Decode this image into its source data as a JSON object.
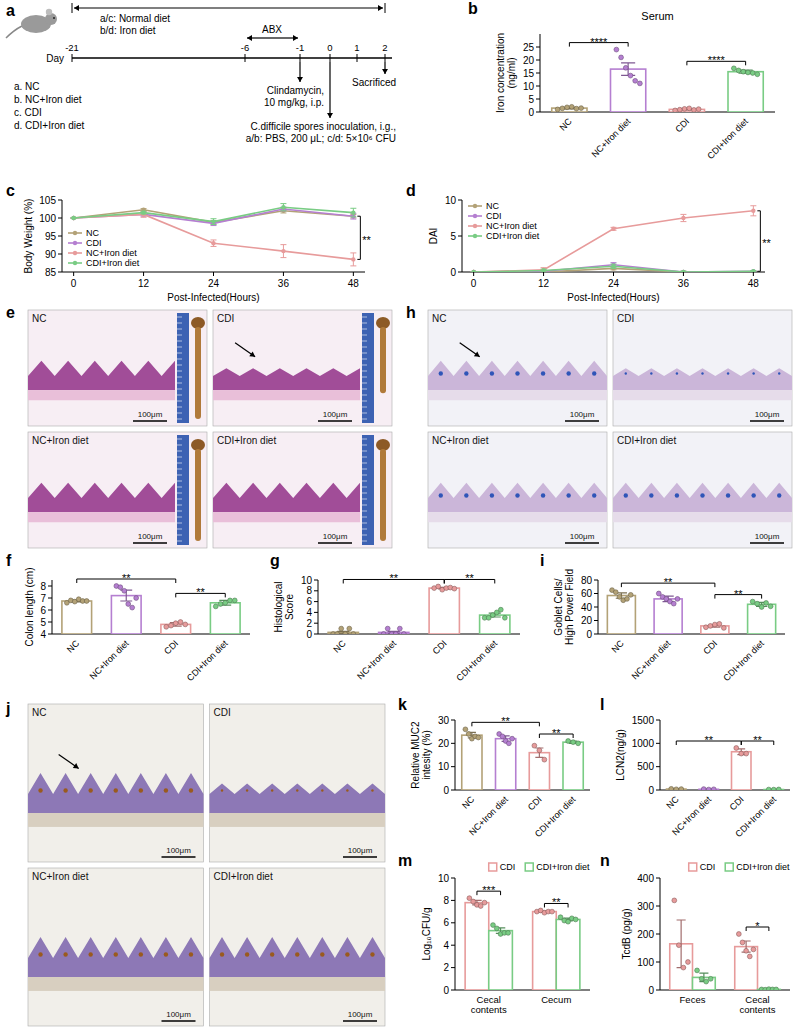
{
  "diagram": {
    "panel": "a",
    "diet": [
      "a/c: Normal diet",
      "b/d: Iron diet"
    ],
    "abx": "ABX",
    "day_label": "Day",
    "days": [
      "-21",
      "-6",
      "-1",
      "0",
      "1",
      "2"
    ],
    "groups": [
      "a. NC",
      "b. NC+Iron diet",
      "c. CDI",
      "d. CDI+Iron diet"
    ],
    "clindamycin": [
      "Clindamycin,",
      "10 mg/kg, i.p."
    ],
    "inoculation": [
      "C.difficile spores inoculation, i.g.,",
      "a/b: PBS, 200 μL; c/d: 5×10⁶ CFU"
    ],
    "sacrificed": "Sacrificed"
  },
  "chart_data": [
    {
      "panel": "b",
      "type": "bar",
      "title": "Serum",
      "y_label": "Iron concentration (ng/ml)",
      "categories": [
        "NC",
        "NC+Iron diet",
        "CDI",
        "CDI+Iron diet"
      ],
      "values": [
        1.5,
        16.5,
        1.0,
        15.5
      ],
      "errors": [
        0.3,
        2.4,
        0.2,
        0.6
      ],
      "points": [
        [
          1.0,
          1.4,
          1.8,
          2.0,
          1.3,
          1.5
        ],
        [
          24,
          21,
          17,
          14,
          12,
          11
        ],
        [
          0.6,
          0.9,
          1.2,
          1.4,
          0.8,
          1.1
        ],
        [
          16.8,
          16.0,
          15.5,
          15.2,
          15.0,
          14.5
        ]
      ],
      "colors": [
        "#b3a277",
        "#b57fd1",
        "#e79b9b",
        "#79cc84"
      ],
      "ylim": [
        0,
        30
      ],
      "yticks": [
        0,
        5,
        10,
        15,
        20,
        25
      ],
      "significance": [
        {
          "groups": [
            0,
            1
          ],
          "label": "****"
        },
        {
          "groups": [
            2,
            3
          ],
          "label": "****"
        }
      ]
    },
    {
      "panel": "c",
      "type": "line",
      "y_label": "Body Weight (%)",
      "x_label": "Post-Infected(Hours)",
      "x": [
        0,
        12,
        24,
        36,
        48
      ],
      "xlim": [
        -2,
        50
      ],
      "xticks": [
        0,
        12,
        24,
        36,
        48
      ],
      "ylim": [
        85,
        105
      ],
      "yticks": [
        85,
        90,
        95,
        100,
        105
      ],
      "legend": "lower-left",
      "series": [
        {
          "name": "NC",
          "color": "#b3a277",
          "values": [
            100,
            102.3,
            98.8,
            102,
            100.5
          ],
          "errors": [
            0,
            0.3,
            0.5,
            0.6,
            0.5
          ]
        },
        {
          "name": "CDI",
          "color": "#b57fd1",
          "values": [
            100,
            101,
            98.5,
            102.5,
            100.5
          ],
          "errors": [
            0,
            0.5,
            0.6,
            0.5,
            0.8
          ]
        },
        {
          "name": "NC+Iron diet",
          "color": "#e79b9b",
          "values": [
            100,
            101,
            93,
            90.8,
            88.5
          ],
          "errors": [
            0,
            0.8,
            0.9,
            1.8,
            1.8
          ]
        },
        {
          "name": "CDI+Iron diet",
          "color": "#79cc84",
          "values": [
            100,
            101.5,
            99,
            103,
            101.5
          ],
          "errors": [
            0,
            0.4,
            0.8,
            1.0,
            1.2
          ]
        }
      ],
      "significance": [
        {
          "series": [
            1,
            2
          ],
          "index": 4,
          "label": "**"
        }
      ]
    },
    {
      "panel": "d",
      "type": "line",
      "y_label": "DAI",
      "x_label": "Post-Infected(Hours)",
      "x": [
        0,
        12,
        24,
        36,
        48
      ],
      "xlim": [
        -2,
        50
      ],
      "xticks": [
        0,
        12,
        24,
        36,
        48
      ],
      "ylim": [
        0,
        10
      ],
      "yticks": [
        0,
        5,
        10
      ],
      "legend": "upper-left",
      "series": [
        {
          "name": "NC",
          "color": "#b3a277",
          "values": [
            0,
            0,
            0.5,
            0,
            0
          ],
          "errors": [
            0,
            0.1,
            0.2,
            0.1,
            0.1
          ]
        },
        {
          "name": "CDI",
          "color": "#b57fd1",
          "values": [
            0,
            0.1,
            1,
            0,
            0.1
          ],
          "errors": [
            0,
            0.2,
            0.3,
            0.1,
            0.1
          ]
        },
        {
          "name": "NC+Iron diet",
          "color": "#e79b9b",
          "values": [
            0,
            0.3,
            6,
            7.5,
            8.5
          ],
          "errors": [
            0,
            0.3,
            0.2,
            0.5,
            0.7
          ]
        },
        {
          "name": "CDI+Iron diet",
          "color": "#79cc84",
          "values": [
            0,
            0.2,
            0.8,
            0,
            0.1
          ],
          "errors": [
            0,
            0.2,
            0.3,
            0.1,
            0.1
          ]
        }
      ],
      "significance": [
        {
          "series": [
            1,
            2
          ],
          "index": 4,
          "label": "**"
        }
      ]
    },
    {
      "panel": "f",
      "type": "bar",
      "y_label": "Colon length (cm)",
      "categories": [
        "NC",
        "NC+Iron diet",
        "CDI",
        "CDI+Iron diet"
      ],
      "values": [
        6.75,
        7.2,
        4.8,
        6.6
      ],
      "errors": [
        0.08,
        0.45,
        0.15,
        0.2
      ],
      "points": [
        [
          6.6,
          6.8,
          6.7,
          6.9,
          6.75,
          6.75
        ],
        [
          8.0,
          7.9,
          7.6,
          6.5,
          6.2,
          7.0
        ],
        [
          4.6,
          4.7,
          4.9,
          5.0,
          4.8
        ],
        [
          6.3,
          6.5,
          6.6,
          6.8,
          6.8
        ]
      ],
      "colors": [
        "#b3a277",
        "#b57fd1",
        "#e79b9b",
        "#79cc84"
      ],
      "ylim": [
        4,
        8.5
      ],
      "yticks": [
        4,
        5,
        6,
        7,
        8
      ],
      "significance": [
        {
          "groups": [
            0,
            2
          ],
          "label": "**"
        },
        {
          "groups": [
            2,
            3
          ],
          "label": "**"
        }
      ]
    },
    {
      "panel": "g",
      "type": "bar",
      "y_label": "Histological Score",
      "categories": [
        "NC",
        "NC+Iron diet",
        "CDI",
        "CDI+Iron diet"
      ],
      "values": [
        0.3,
        0.3,
        8.5,
        3.5
      ],
      "errors": [
        0.2,
        0.2,
        0.15,
        0.35
      ],
      "points": [
        [
          0,
          0,
          1,
          0,
          1,
          0
        ],
        [
          0,
          1,
          0,
          0,
          1,
          0
        ],
        [
          8.5,
          8.8,
          8.2,
          8.5,
          8.6,
          8.4
        ],
        [
          3,
          3,
          3.5,
          4,
          4.5,
          3
        ]
      ],
      "colors": [
        "#b3a277",
        "#b57fd1",
        "#e79b9b",
        "#79cc84"
      ],
      "ylim": [
        0,
        10
      ],
      "yticks": [
        0,
        2,
        4,
        6,
        8,
        10
      ],
      "significance": [
        {
          "groups": [
            0,
            2
          ],
          "label": "**"
        },
        {
          "groups": [
            2,
            3
          ],
          "label": "**"
        }
      ]
    },
    {
      "panel": "i",
      "type": "bar",
      "y_label": "Goblet Cells/ High Power Field",
      "categories": [
        "NC",
        "NC+Iron diet",
        "CDI",
        "CDI+Iron diet"
      ],
      "values": [
        57,
        52,
        12,
        44
      ],
      "errors": [
        4,
        4,
        2,
        3
      ],
      "points": [
        [
          65,
          62,
          55,
          50,
          52,
          58
        ],
        [
          60,
          55,
          52,
          48,
          45,
          52
        ],
        [
          10,
          12,
          14,
          15,
          9
        ],
        [
          48,
          45,
          40,
          46,
          41
        ]
      ],
      "colors": [
        "#b3a277",
        "#b57fd1",
        "#e79b9b",
        "#79cc84"
      ],
      "ylim": [
        0,
        80
      ],
      "yticks": [
        0,
        20,
        40,
        60,
        80
      ],
      "significance": [
        {
          "groups": [
            0,
            2
          ],
          "label": "**"
        },
        {
          "groups": [
            2,
            3
          ],
          "label": "**"
        }
      ]
    },
    {
      "panel": "k",
      "type": "bar",
      "y_label": "Relative MUC2 intesity (%)",
      "categories": [
        "NC",
        "NC+Iron diet",
        "CDI",
        "CDI+Iron diet"
      ],
      "values": [
        23.5,
        22,
        16,
        20.5
      ],
      "errors": [
        1.2,
        1.2,
        2,
        0.5
      ],
      "points": [
        [
          26,
          24,
          22,
          23,
          22.5
        ],
        [
          24,
          23,
          21,
          20,
          22
        ],
        [
          19,
          17,
          13
        ],
        [
          21,
          20.5,
          20
        ]
      ],
      "colors": [
        "#b3a277",
        "#b57fd1",
        "#e79b9b",
        "#79cc84"
      ],
      "ylim": [
        0,
        30
      ],
      "yticks": [
        0,
        10,
        20,
        30
      ],
      "significance": [
        {
          "groups": [
            0,
            2
          ],
          "label": "**"
        },
        {
          "groups": [
            2,
            3
          ],
          "label": "**"
        }
      ]
    },
    {
      "panel": "l",
      "type": "bar",
      "y_label": "LCN2(ng/g)",
      "categories": [
        "NC",
        "NC+Iron diet",
        "CDI",
        "CDI+Iron diet"
      ],
      "values": [
        20,
        15,
        820,
        10
      ],
      "errors": [
        5,
        5,
        60,
        3
      ],
      "points": [
        [
          25,
          15,
          20
        ],
        [
          20,
          10,
          15
        ],
        [
          900,
          780,
          780
        ],
        [
          10,
          8,
          12
        ]
      ],
      "colors": [
        "#b3a277",
        "#b57fd1",
        "#e79b9b",
        "#79cc84"
      ],
      "ylim": [
        0,
        1500
      ],
      "yticks": [
        0,
        500,
        1000,
        1500
      ],
      "significance": [
        {
          "groups": [
            0,
            2
          ],
          "label": "**"
        },
        {
          "groups": [
            2,
            3
          ],
          "label": "**"
        }
      ]
    },
    {
      "panel": "m",
      "type": "bar",
      "y_label": "Log₁₀CFU/g",
      "categories": [
        "Cecal contents",
        "Cecum"
      ],
      "legend": "top-right",
      "series": [
        {
          "name": "CDI",
          "color": "#e79b9b",
          "values": [
            7.8,
            7.0
          ],
          "errors": [
            0.2,
            0.05
          ],
          "points": [
            [
              8.2,
              7.9,
              7.6,
              7.5,
              7.8
            ],
            [
              7.0,
              7.1,
              6.9,
              7.0,
              7.0
            ]
          ]
        },
        {
          "name": "CDI+Iron diet",
          "color": "#79cc84",
          "values": [
            5.3,
            6.3
          ],
          "errors": [
            0.25,
            0.12
          ],
          "points": [
            [
              5.8,
              5.5,
              5.0,
              5.1,
              5.1
            ],
            [
              6.5,
              6.2,
              6.1,
              6.4,
              6.3
            ]
          ]
        }
      ],
      "ylim": [
        0,
        10
      ],
      "yticks": [
        0,
        2,
        4,
        6,
        8,
        10
      ],
      "significance": [
        {
          "group": 0,
          "label": "***"
        },
        {
          "group": 1,
          "label": "**"
        }
      ]
    },
    {
      "panel": "n",
      "type": "bar",
      "y_label": "TcdB (pg/g)",
      "categories": [
        "Feces",
        "Cecal contents"
      ],
      "legend": "top-right",
      "series": [
        {
          "name": "CDI",
          "color": "#e79b9b",
          "values": [
            165,
            155
          ],
          "errors": [
            85,
            20
          ],
          "points": [
            [
              320,
              160,
              80,
              100
            ],
            [
              200,
              170,
              140,
              120,
              145
            ]
          ]
        },
        {
          "name": "CDI+Iron diet",
          "color": "#79cc84",
          "values": [
            45,
            2
          ],
          "errors": [
            15,
            1
          ],
          "points": [
            [
              70,
              40,
              30,
              40
            ],
            [
              2,
              1,
              3,
              2,
              2
            ]
          ]
        }
      ],
      "ylim": [
        0,
        400
      ],
      "yticks": [
        0,
        100,
        200,
        300,
        400
      ],
      "significance": [
        {
          "group": 1,
          "label": "*"
        }
      ]
    }
  ],
  "images": [
    {
      "panel": "e",
      "labels": [
        "NC",
        "CDI",
        "NC+Iron diet",
        "CDI+Iron diet"
      ],
      "scale_bar": "100μm"
    },
    {
      "panel": "h",
      "labels": [
        "NC",
        "CDI",
        "NC+Iron diet",
        "CDI+Iron diet"
      ],
      "scale_bar": "100μm"
    },
    {
      "panel": "j",
      "labels": [
        "NC",
        "CDI",
        "NC+Iron diet",
        "CDI+Iron diet"
      ],
      "scale_bar": "100μm"
    }
  ]
}
